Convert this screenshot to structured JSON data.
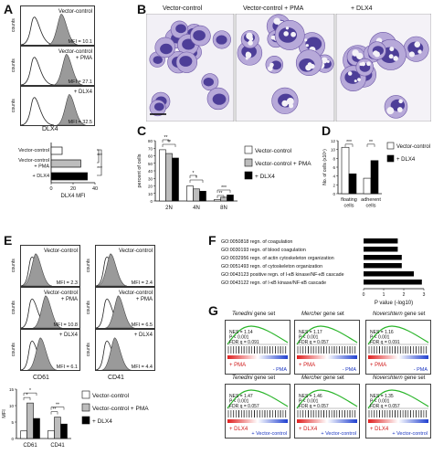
{
  "panels": {
    "A": {
      "letter": "A",
      "hists": [
        {
          "label": "Vector-control",
          "mfi": "MFI = 10.1"
        },
        {
          "label": "Vector-control\n+ PMA",
          "mfi": "MFI = 27.1"
        },
        {
          "label": "+ DLX4",
          "mfi": "MFI = 32.5"
        }
      ],
      "y_label": "counts",
      "x_label": "DLX4",
      "bar_labels": [
        "Vector-control",
        "Vector-control\n+ PMA",
        "+ DLX4"
      ],
      "bar_axis": "DLX4 MFI",
      "ticks": [
        "0",
        "20",
        "40"
      ],
      "stars": [
        "***",
        "***"
      ]
    },
    "B": {
      "letter": "B",
      "titles": [
        "Vector-control",
        "Vector-control + PMA",
        "+ DLX4"
      ]
    },
    "C": {
      "letter": "C",
      "ylabel": "percent of cells",
      "categories": [
        "2N",
        "4N",
        "8N"
      ],
      "yticks": [
        "0",
        "10",
        "20",
        "30",
        "40",
        "50",
        "60",
        "70",
        "80"
      ],
      "legend": [
        "Vector-control",
        "Vector-control + PMA",
        "+ DLX4"
      ],
      "stars": [
        "**",
        "**",
        "*",
        "*",
        "**",
        "***"
      ]
    },
    "D": {
      "letter": "D",
      "ylabel": "No. of cells (x10⁵)",
      "categories": [
        "floating\ncells",
        "adherent\ncells"
      ],
      "yticks": [
        "0",
        "2",
        "4",
        "6",
        "8",
        "10",
        "12"
      ],
      "legend": [
        "Vector-control",
        "+ DLX4"
      ],
      "stars": [
        "***",
        "**"
      ]
    },
    "E": {
      "letter": "E",
      "left": [
        {
          "label": "Vector-control",
          "mfi": "MFI = 2.3"
        },
        {
          "label": "Vector-control\n+ PMA",
          "mfi": "MFI = 10.8"
        },
        {
          "label": "+ DLX4",
          "mfi": "MFI = 6.1"
        }
      ],
      "right": [
        {
          "label": "Vector-control",
          "mfi": "MFI = 2.4"
        },
        {
          "label": "Vector-control\n+ PMA",
          "mfi": "MFI = 6.5"
        },
        {
          "label": "+ DLX4",
          "mfi": "MFI = 4.4"
        }
      ],
      "y_label": "counts",
      "x_left": "CD61",
      "x_right": "CD41",
      "bar_ylabel": "MFI",
      "bar_categories": [
        "CD61",
        "CD41"
      ],
      "bar_ticks": [
        "0",
        "5",
        "10",
        "15"
      ],
      "legend": [
        "Vector-control",
        "Vector-control + PMA",
        "+ DLX4"
      ],
      "stars": [
        "*",
        "*",
        "**",
        "**"
      ]
    },
    "F": {
      "letter": "F",
      "terms": [
        "GO:0050818  regn. of coagulation",
        "GO:0030193  regn. of blood coagulation",
        "GO:0032956  regn. of actin cytoskeleton organization",
        "GO:0051493  regn. of cytoskeleton organization",
        "GO:0043123  positive regn. of I-κB kinase/NF-κB cascade",
        "GO:0043122  regn. of I-κB kinase/NF-κB cascade"
      ],
      "xlabel": "P value (-log10)",
      "xticks": [
        "0",
        "1",
        "2",
        "3"
      ]
    },
    "G": {
      "letter": "G",
      "set_titles": [
        "Tenedini gene set",
        "Mercher gene set",
        "Novershtern gene set"
      ],
      "top": [
        {
          "nes": "NES = 1.14",
          "p": "P < 0.001",
          "fdr": "FDR q = 0.091",
          "pos": "+ PMA",
          "neg": "- PMA"
        },
        {
          "nes": "NES = 1.17",
          "p": "P < 0.001",
          "fdr": "FDR q = 0.057",
          "pos": "+ PMA",
          "neg": "- PMA"
        },
        {
          "nes": "NES = 1.16",
          "p": "P < 0.001",
          "fdr": "FDR q = 0.091",
          "pos": "+ PMA",
          "neg": "- PMA"
        }
      ],
      "bottom": [
        {
          "nes": "NES = 1.47",
          "p": "P < 0.001",
          "fdr": "FDR q = 0.057",
          "pos": "+ DLX4",
          "neg": "+ Vector-control"
        },
        {
          "nes": "NES = 1.46",
          "p": "P < 0.001",
          "fdr": "FDR q = 0.057",
          "pos": "+ DLX4",
          "neg": "+ Vector-control"
        },
        {
          "nes": "NES = 1.35",
          "p": "P < 0.001",
          "fdr": "FDR q = 0.057",
          "pos": "+ DLX4",
          "neg": "+ Vector-control"
        }
      ]
    }
  },
  "chart_data": [
    {
      "type": "bar",
      "categories": [
        "Vector-control",
        "Vector-control + PMA",
        "+ DLX4"
      ],
      "values": [
        10,
        27,
        33
      ],
      "xlabel": "DLX4 MFI",
      "xlim": [
        0,
        40
      ]
    },
    {
      "type": "bar",
      "categories": [
        "2N",
        "4N",
        "8N"
      ],
      "series": [
        {
          "name": "Vector-control",
          "values": [
            68,
            20,
            2
          ]
        },
        {
          "name": "Vector-control + PMA",
          "values": [
            63,
            16,
            5
          ]
        },
        {
          "name": "+ DLX4",
          "values": [
            57,
            13,
            8
          ]
        }
      ],
      "ylabel": "percent of cells",
      "ylim": [
        0,
        80
      ]
    },
    {
      "type": "bar",
      "categories": [
        "floating cells",
        "adherent cells"
      ],
      "series": [
        {
          "name": "Vector-control",
          "values": [
            10.5,
            3.5
          ]
        },
        {
          "name": "+ DLX4",
          "values": [
            4.5,
            7.5
          ]
        }
      ],
      "ylabel": "No. of cells (x10⁵)",
      "ylim": [
        0,
        12
      ]
    },
    {
      "type": "bar",
      "categories": [
        "CD61",
        "CD41"
      ],
      "series": [
        {
          "name": "Vector-control",
          "values": [
            2.3,
            2.4
          ]
        },
        {
          "name": "Vector-control + PMA",
          "values": [
            10.8,
            6.5
          ]
        },
        {
          "name": "+ DLX4",
          "values": [
            6.1,
            4.4
          ]
        }
      ],
      "ylabel": "MFI",
      "ylim": [
        0,
        15
      ]
    },
    {
      "type": "bar",
      "categories": [
        "GO:0050818",
        "GO:0030193",
        "GO:0032956",
        "GO:0051493",
        "GO:0043123",
        "GO:0043122"
      ],
      "values": [
        1.7,
        1.7,
        1.9,
        1.9,
        2.5,
        2.9
      ],
      "xlabel": "P value (-log10)",
      "xlim": [
        0,
        3
      ]
    }
  ]
}
